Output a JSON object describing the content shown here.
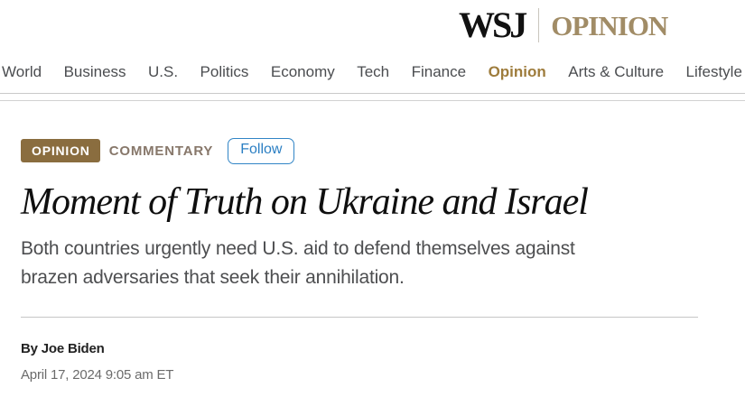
{
  "header": {
    "logo_wsj": "WSJ",
    "logo_section": "OPINION"
  },
  "nav": {
    "items": [
      {
        "label": "World",
        "active": false
      },
      {
        "label": "Business",
        "active": false
      },
      {
        "label": "U.S.",
        "active": false
      },
      {
        "label": "Politics",
        "active": false
      },
      {
        "label": "Economy",
        "active": false
      },
      {
        "label": "Tech",
        "active": false
      },
      {
        "label": "Finance",
        "active": false
      },
      {
        "label": "Opinion",
        "active": true
      },
      {
        "label": "Arts & Culture",
        "active": false
      },
      {
        "label": "Lifestyle",
        "active": false
      }
    ]
  },
  "article": {
    "kicker_badge": "OPINION",
    "kicker_label": "COMMENTARY",
    "follow_label": "Follow",
    "headline": "Moment of Truth on Ukraine and Israel",
    "subhead_lines": [
      "Both countries urgently need U.S. aid to defend themselves against",
      "brazen adversaries that seek their annihilation."
    ],
    "byline": "By Joe Biden",
    "dateline": "April 17, 2024 9:05 am ET"
  },
  "colors": {
    "logo_black": "#111111",
    "logo_gold": "#a18c66",
    "nav_text": "#4b4d50",
    "nav_active_gold": "#9e7c3c",
    "badge_bg": "#8a6d3f",
    "kicker_text": "#87776a",
    "follow_blue": "#2b7fc3",
    "headline_text": "#0f0f0f",
    "subhead_text": "#4d4e50",
    "dateline_text": "#6b6b6b",
    "rule_gray": "#c9c9c9"
  }
}
